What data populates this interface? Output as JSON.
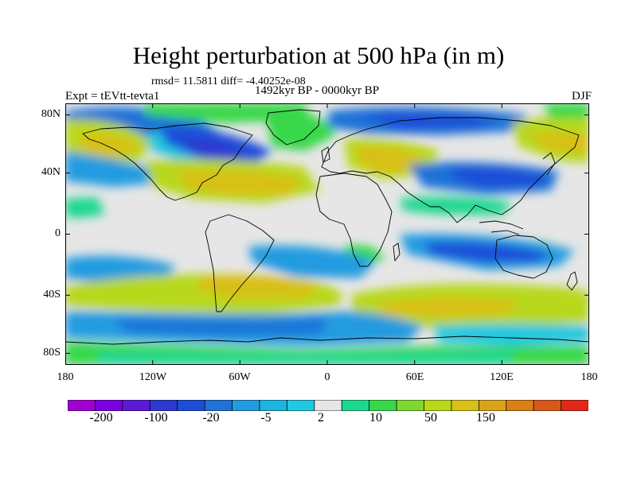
{
  "header": {
    "title": "Height perturbation at 500 hPa (in m)",
    "stats": "rmsd= 11.5811 diff= -4.40252e-08",
    "experiment": "Expt = tEVtt-tevta1",
    "period": "1492kyr BP - 0000kyr BP",
    "season": "DJF"
  },
  "map": {
    "projection": "cylindrical-equidistant",
    "lon_range": [
      -180,
      180
    ],
    "lat_range": [
      -90,
      90
    ],
    "lat_labels": [
      "80N",
      "40N",
      "0",
      "40S",
      "80S"
    ],
    "lon_labels": [
      "180",
      "120W",
      "60W",
      "0",
      "60E",
      "120E",
      "180"
    ],
    "neutral_color": "#e6e6e6",
    "coastline_color": "#000000"
  },
  "colorbar": {
    "colors": [
      "#a000d0",
      "#7b00e0",
      "#5a1ad8",
      "#2f38d0",
      "#1e4ed8",
      "#1f72d8",
      "#239be0",
      "#1db4e0",
      "#20c8e0",
      "#e6e6e6",
      "#1ed890",
      "#39d84a",
      "#7ed830",
      "#b8d81a",
      "#d8c018",
      "#d8a41a",
      "#d87f18",
      "#d8581c",
      "#e02818"
    ],
    "labels": [
      "-200",
      "-100",
      "-20",
      "-5",
      "2",
      "10",
      "50",
      "150"
    ]
  }
}
